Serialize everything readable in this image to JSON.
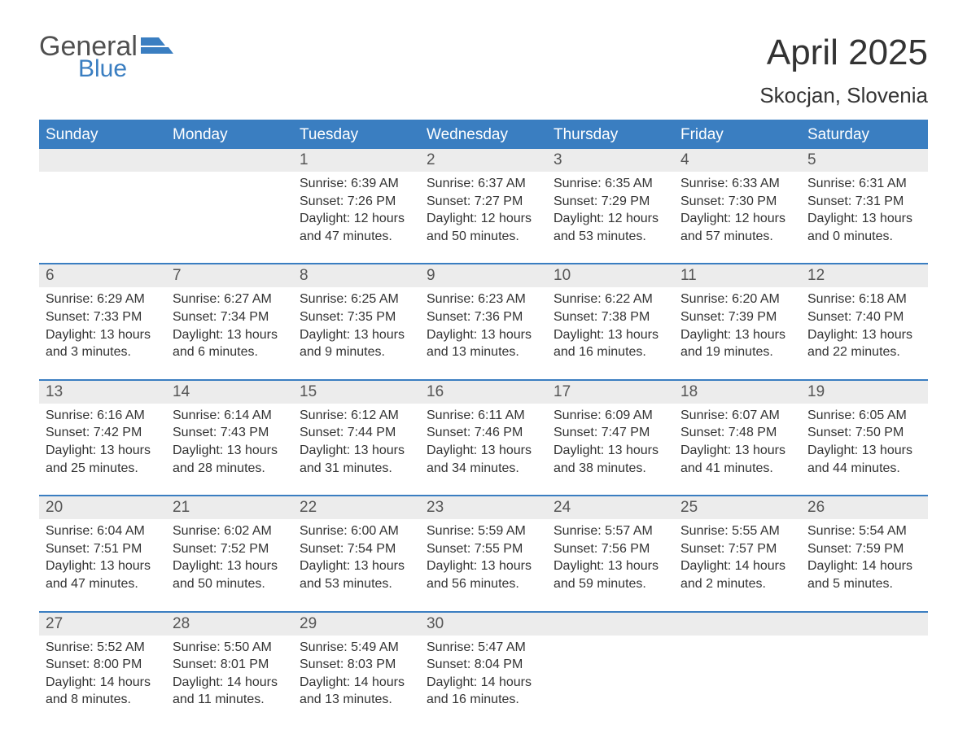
{
  "logo": {
    "text_primary": "General",
    "text_secondary": "Blue",
    "primary_color": "#505050",
    "secondary_color": "#3a7ec1"
  },
  "header": {
    "month_title": "April 2025",
    "location": "Skocjan, Slovenia"
  },
  "colors": {
    "header_bg": "#3a7ec1",
    "header_text": "#ffffff",
    "daynum_bg": "#ececec",
    "divider": "#3a7ec1",
    "body_text": "#333333"
  },
  "weekdays": [
    "Sunday",
    "Monday",
    "Tuesday",
    "Wednesday",
    "Thursday",
    "Friday",
    "Saturday"
  ],
  "weeks": [
    {
      "days": [
        {
          "num": "",
          "sunrise": "",
          "sunset": "",
          "daylight": ""
        },
        {
          "num": "",
          "sunrise": "",
          "sunset": "",
          "daylight": ""
        },
        {
          "num": "1",
          "sunrise": "Sunrise: 6:39 AM",
          "sunset": "Sunset: 7:26 PM",
          "daylight": "Daylight: 12 hours and 47 minutes."
        },
        {
          "num": "2",
          "sunrise": "Sunrise: 6:37 AM",
          "sunset": "Sunset: 7:27 PM",
          "daylight": "Daylight: 12 hours and 50 minutes."
        },
        {
          "num": "3",
          "sunrise": "Sunrise: 6:35 AM",
          "sunset": "Sunset: 7:29 PM",
          "daylight": "Daylight: 12 hours and 53 minutes."
        },
        {
          "num": "4",
          "sunrise": "Sunrise: 6:33 AM",
          "sunset": "Sunset: 7:30 PM",
          "daylight": "Daylight: 12 hours and 57 minutes."
        },
        {
          "num": "5",
          "sunrise": "Sunrise: 6:31 AM",
          "sunset": "Sunset: 7:31 PM",
          "daylight": "Daylight: 13 hours and 0 minutes."
        }
      ]
    },
    {
      "days": [
        {
          "num": "6",
          "sunrise": "Sunrise: 6:29 AM",
          "sunset": "Sunset: 7:33 PM",
          "daylight": "Daylight: 13 hours and 3 minutes."
        },
        {
          "num": "7",
          "sunrise": "Sunrise: 6:27 AM",
          "sunset": "Sunset: 7:34 PM",
          "daylight": "Daylight: 13 hours and 6 minutes."
        },
        {
          "num": "8",
          "sunrise": "Sunrise: 6:25 AM",
          "sunset": "Sunset: 7:35 PM",
          "daylight": "Daylight: 13 hours and 9 minutes."
        },
        {
          "num": "9",
          "sunrise": "Sunrise: 6:23 AM",
          "sunset": "Sunset: 7:36 PM",
          "daylight": "Daylight: 13 hours and 13 minutes."
        },
        {
          "num": "10",
          "sunrise": "Sunrise: 6:22 AM",
          "sunset": "Sunset: 7:38 PM",
          "daylight": "Daylight: 13 hours and 16 minutes."
        },
        {
          "num": "11",
          "sunrise": "Sunrise: 6:20 AM",
          "sunset": "Sunset: 7:39 PM",
          "daylight": "Daylight: 13 hours and 19 minutes."
        },
        {
          "num": "12",
          "sunrise": "Sunrise: 6:18 AM",
          "sunset": "Sunset: 7:40 PM",
          "daylight": "Daylight: 13 hours and 22 minutes."
        }
      ]
    },
    {
      "days": [
        {
          "num": "13",
          "sunrise": "Sunrise: 6:16 AM",
          "sunset": "Sunset: 7:42 PM",
          "daylight": "Daylight: 13 hours and 25 minutes."
        },
        {
          "num": "14",
          "sunrise": "Sunrise: 6:14 AM",
          "sunset": "Sunset: 7:43 PM",
          "daylight": "Daylight: 13 hours and 28 minutes."
        },
        {
          "num": "15",
          "sunrise": "Sunrise: 6:12 AM",
          "sunset": "Sunset: 7:44 PM",
          "daylight": "Daylight: 13 hours and 31 minutes."
        },
        {
          "num": "16",
          "sunrise": "Sunrise: 6:11 AM",
          "sunset": "Sunset: 7:46 PM",
          "daylight": "Daylight: 13 hours and 34 minutes."
        },
        {
          "num": "17",
          "sunrise": "Sunrise: 6:09 AM",
          "sunset": "Sunset: 7:47 PM",
          "daylight": "Daylight: 13 hours and 38 minutes."
        },
        {
          "num": "18",
          "sunrise": "Sunrise: 6:07 AM",
          "sunset": "Sunset: 7:48 PM",
          "daylight": "Daylight: 13 hours and 41 minutes."
        },
        {
          "num": "19",
          "sunrise": "Sunrise: 6:05 AM",
          "sunset": "Sunset: 7:50 PM",
          "daylight": "Daylight: 13 hours and 44 minutes."
        }
      ]
    },
    {
      "days": [
        {
          "num": "20",
          "sunrise": "Sunrise: 6:04 AM",
          "sunset": "Sunset: 7:51 PM",
          "daylight": "Daylight: 13 hours and 47 minutes."
        },
        {
          "num": "21",
          "sunrise": "Sunrise: 6:02 AM",
          "sunset": "Sunset: 7:52 PM",
          "daylight": "Daylight: 13 hours and 50 minutes."
        },
        {
          "num": "22",
          "sunrise": "Sunrise: 6:00 AM",
          "sunset": "Sunset: 7:54 PM",
          "daylight": "Daylight: 13 hours and 53 minutes."
        },
        {
          "num": "23",
          "sunrise": "Sunrise: 5:59 AM",
          "sunset": "Sunset: 7:55 PM",
          "daylight": "Daylight: 13 hours and 56 minutes."
        },
        {
          "num": "24",
          "sunrise": "Sunrise: 5:57 AM",
          "sunset": "Sunset: 7:56 PM",
          "daylight": "Daylight: 13 hours and 59 minutes."
        },
        {
          "num": "25",
          "sunrise": "Sunrise: 5:55 AM",
          "sunset": "Sunset: 7:57 PM",
          "daylight": "Daylight: 14 hours and 2 minutes."
        },
        {
          "num": "26",
          "sunrise": "Sunrise: 5:54 AM",
          "sunset": "Sunset: 7:59 PM",
          "daylight": "Daylight: 14 hours and 5 minutes."
        }
      ]
    },
    {
      "days": [
        {
          "num": "27",
          "sunrise": "Sunrise: 5:52 AM",
          "sunset": "Sunset: 8:00 PM",
          "daylight": "Daylight: 14 hours and 8 minutes."
        },
        {
          "num": "28",
          "sunrise": "Sunrise: 5:50 AM",
          "sunset": "Sunset: 8:01 PM",
          "daylight": "Daylight: 14 hours and 11 minutes."
        },
        {
          "num": "29",
          "sunrise": "Sunrise: 5:49 AM",
          "sunset": "Sunset: 8:03 PM",
          "daylight": "Daylight: 14 hours and 13 minutes."
        },
        {
          "num": "30",
          "sunrise": "Sunrise: 5:47 AM",
          "sunset": "Sunset: 8:04 PM",
          "daylight": "Daylight: 14 hours and 16 minutes."
        },
        {
          "num": "",
          "sunrise": "",
          "sunset": "",
          "daylight": ""
        },
        {
          "num": "",
          "sunrise": "",
          "sunset": "",
          "daylight": ""
        },
        {
          "num": "",
          "sunrise": "",
          "sunset": "",
          "daylight": ""
        }
      ]
    }
  ]
}
